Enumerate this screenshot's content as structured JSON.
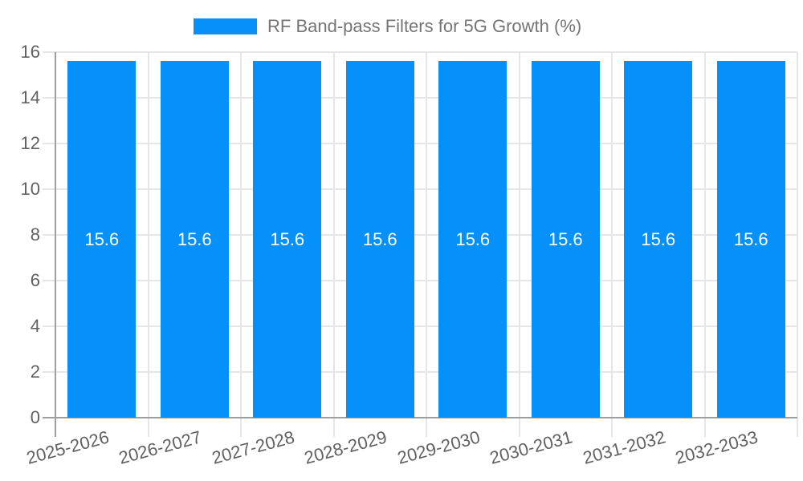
{
  "chart_data": {
    "type": "bar",
    "title": "RF Band-pass Filters for 5G Growth (%)",
    "categories": [
      "2025-2026",
      "2026-2027",
      "2027-2028",
      "2028-2029",
      "2029-2030",
      "2030-2031",
      "2031-2032",
      "2032-2033"
    ],
    "values": [
      15.6,
      15.6,
      15.6,
      15.6,
      15.6,
      15.6,
      15.6,
      15.6
    ],
    "value_labels": [
      "15.6",
      "15.6",
      "15.6",
      "15.6",
      "15.6",
      "15.6",
      "15.6",
      "15.6"
    ],
    "xlabel": "",
    "ylabel": "",
    "ylim": [
      0,
      16
    ],
    "yticks": [
      0,
      2,
      4,
      6,
      8,
      10,
      12,
      14,
      16
    ],
    "grid": true,
    "legend_position": "top-center"
  },
  "colors": {
    "bar": "#0591f9",
    "grid_line": "#e6e6e6",
    "axis_line": "#9e9e9e",
    "tick_label": "#616161",
    "legend_text": "#757575",
    "value_label": "#ffffff",
    "background": "#ffffff"
  }
}
